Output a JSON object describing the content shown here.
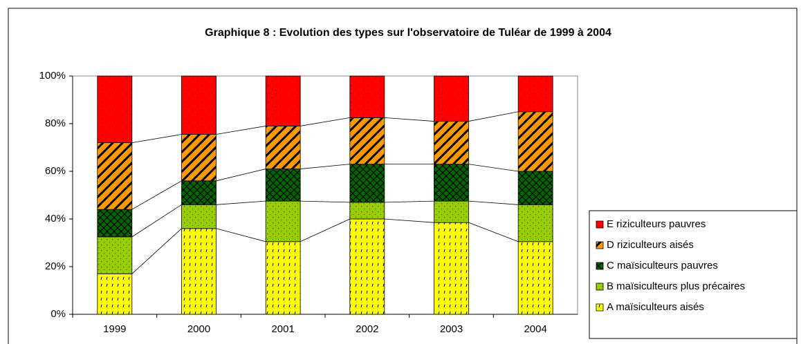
{
  "chart_data": {
    "type": "stacked_bar",
    "title": "Graphique 8 : Evolution des types sur l'observatoire de Tuléar de 1999 à 2004",
    "categories": [
      "1999",
      "2000",
      "2001",
      "2002",
      "2003",
      "2004"
    ],
    "series": [
      {
        "name": "A maïsiculteurs aisés",
        "color": "#ffff00",
        "values": [
          17,
          36,
          30.5,
          40,
          38.5,
          30.5
        ]
      },
      {
        "name": "B maïsiculteurs plus précaires",
        "color": "#99cc00",
        "values": [
          15.5,
          10,
          17,
          7,
          9,
          15.5
        ]
      },
      {
        "name": "C maïsiculteurs pauvres",
        "color": "#006600",
        "values": [
          11.5,
          10,
          13.5,
          16,
          15.5,
          14
        ]
      },
      {
        "name": "D riziculteurs aisés",
        "color": "#ff9900",
        "values": [
          28,
          19.5,
          18,
          19.5,
          18,
          25
        ]
      },
      {
        "name": "E riziculteurs pauvres",
        "color": "#ff0000",
        "values": [
          28,
          24.5,
          21,
          17.5,
          19,
          15
        ]
      }
    ],
    "ylim": [
      0,
      100
    ],
    "yticks": [
      {
        "value": 0,
        "label": "0%"
      },
      {
        "value": 20,
        "label": "20%"
      },
      {
        "value": 40,
        "label": "40%"
      },
      {
        "value": 60,
        "label": "60%"
      },
      {
        "value": 80,
        "label": "80%"
      },
      {
        "value": 100,
        "label": "100%"
      }
    ],
    "legend": "right"
  }
}
